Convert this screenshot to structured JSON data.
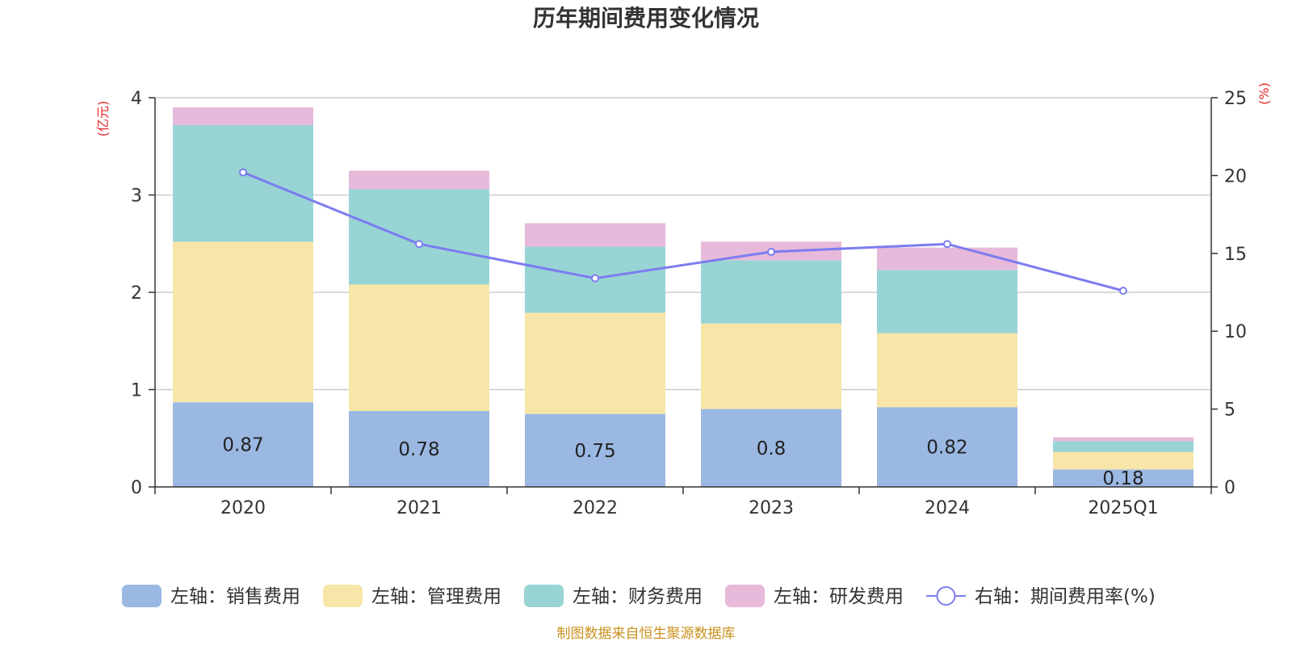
{
  "chart_data": {
    "type": "bar",
    "stacked": true,
    "title": "历年期间费用变化情况",
    "categories": [
      "2020",
      "2021",
      "2022",
      "2023",
      "2024",
      "2025Q1"
    ],
    "left_axis": {
      "unit": "(亿元)",
      "range": [
        0,
        4
      ],
      "ticks": [
        "0",
        "1",
        "2",
        "3",
        "4"
      ]
    },
    "right_axis": {
      "unit": "(%)",
      "range": [
        0,
        25
      ],
      "ticks": [
        "0",
        "5",
        "10",
        "15",
        "20",
        "25"
      ]
    },
    "series": [
      {
        "name": "左轴：销售费用",
        "axis": "left",
        "color": "#9bb8e2",
        "values": [
          0.87,
          0.78,
          0.75,
          0.8,
          0.82,
          0.18
        ],
        "labels": [
          "0.87",
          "0.78",
          "0.75",
          "0.8",
          "0.82",
          "0.18"
        ]
      },
      {
        "name": "左轴：管理费用",
        "axis": "left",
        "color": "#f7e6a8",
        "values": [
          1.65,
          1.3,
          1.04,
          0.88,
          0.76,
          0.18
        ]
      },
      {
        "name": "左轴：财务费用",
        "axis": "left",
        "color": "#98d4d4",
        "values": [
          1.2,
          0.98,
          0.68,
          0.65,
          0.65,
          0.11
        ]
      },
      {
        "name": "左轴：研发费用",
        "axis": "left",
        "color": "#e7b9da",
        "values": [
          0.18,
          0.19,
          0.24,
          0.19,
          0.23,
          0.04
        ]
      }
    ],
    "line": {
      "name": "右轴：期间费用率(%)",
      "axis": "right",
      "color": "#7c7cf0",
      "values": [
        20.2,
        15.6,
        13.4,
        15.1,
        15.6,
        12.6
      ]
    },
    "source": "制图数据来自恒生聚源数据库"
  }
}
